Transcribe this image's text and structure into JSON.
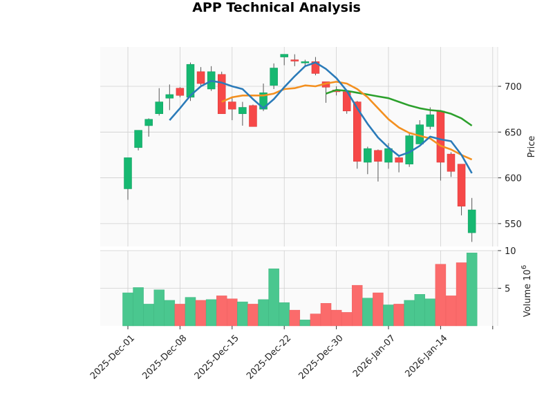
{
  "chart_data": {
    "type": "candlestick",
    "title": "APP Technical Analysis",
    "price_axis": {
      "label": "Price",
      "ylim": [
        525,
        743
      ],
      "ticks": [
        550,
        600,
        650,
        700
      ]
    },
    "volume_axis": {
      "label": "Volume",
      "multiplier_label": "10",
      "multiplier_exp": "6",
      "ylim": [
        0,
        10
      ],
      "ticks": [
        5,
        10
      ]
    },
    "x_ticks": [
      {
        "label": "2025-Dec-01",
        "index": 0
      },
      {
        "label": "2025-Dec-08",
        "index": 5
      },
      {
        "label": "2025-Dec-15",
        "index": 10
      },
      {
        "label": "2025-Dec-22",
        "index": 15
      },
      {
        "label": "2025-Dec-30",
        "index": 20
      },
      {
        "label": "2026-Jan-07",
        "index": 25
      },
      {
        "label": "2026-Jan-14",
        "index": 30
      }
    ],
    "candles": [
      {
        "open": 588,
        "high": 622,
        "low": 576,
        "close": 622,
        "volume": 4.4
      },
      {
        "open": 633,
        "high": 652,
        "low": 630,
        "close": 652,
        "volume": 5.1
      },
      {
        "open": 657,
        "high": 665,
        "low": 645,
        "close": 664,
        "volume": 2.9
      },
      {
        "open": 670,
        "high": 698,
        "low": 668,
        "close": 683,
        "volume": 4.8
      },
      {
        "open": 687,
        "high": 702,
        "low": 674,
        "close": 691,
        "volume": 3.4
      },
      {
        "open": 698,
        "high": 699,
        "low": 688,
        "close": 690,
        "volume": 2.9
      },
      {
        "open": 688,
        "high": 726,
        "low": 684,
        "close": 724,
        "volume": 3.8
      },
      {
        "open": 716,
        "high": 721,
        "low": 700,
        "close": 703,
        "volume": 3.4
      },
      {
        "open": 697,
        "high": 722,
        "low": 695,
        "close": 716,
        "volume": 3.5
      },
      {
        "open": 713,
        "high": 716,
        "low": 670,
        "close": 670,
        "volume": 4.0
      },
      {
        "open": 683,
        "high": 689,
        "low": 663,
        "close": 675,
        "volume": 3.6
      },
      {
        "open": 670,
        "high": 683,
        "low": 657,
        "close": 677,
        "volume": 3.2
      },
      {
        "open": 679,
        "high": 680,
        "low": 656,
        "close": 656,
        "volume": 2.9
      },
      {
        "open": 675,
        "high": 703,
        "low": 673,
        "close": 693,
        "volume": 3.5
      },
      {
        "open": 701,
        "high": 725,
        "low": 697,
        "close": 720,
        "volume": 7.6
      },
      {
        "open": 732,
        "high": 735,
        "low": 723,
        "close": 735,
        "volume": 3.1
      },
      {
        "open": 729,
        "high": 735,
        "low": 722,
        "close": 728,
        "volume": 2.1
      },
      {
        "open": 727,
        "high": 729,
        "low": 722,
        "close": 727,
        "volume": 0.8
      },
      {
        "open": 727,
        "high": 732,
        "low": 712,
        "close": 714,
        "volume": 1.6
      },
      {
        "open": 705,
        "high": 703,
        "low": 682,
        "close": 699,
        "volume": 3.0
      },
      {
        "open": 696,
        "high": 700,
        "low": 690,
        "close": 694,
        "volume": 2.1
      },
      {
        "open": 694,
        "high": 696,
        "low": 670,
        "close": 673,
        "volume": 1.8
      },
      {
        "open": 683,
        "high": 684,
        "low": 610,
        "close": 618,
        "volume": 5.4
      },
      {
        "open": 617,
        "high": 634,
        "low": 604,
        "close": 632,
        "volume": 3.7
      },
      {
        "open": 630,
        "high": 631,
        "low": 596,
        "close": 618,
        "volume": 4.4
      },
      {
        "open": 617,
        "high": 638,
        "low": 610,
        "close": 632,
        "volume": 2.8
      },
      {
        "open": 622,
        "high": 624,
        "low": 606,
        "close": 617,
        "volume": 2.9
      },
      {
        "open": 615,
        "high": 649,
        "low": 612,
        "close": 646,
        "volume": 3.4
      },
      {
        "open": 637,
        "high": 663,
        "low": 637,
        "close": 658,
        "volume": 4.2
      },
      {
        "open": 656,
        "high": 677,
        "low": 653,
        "close": 669,
        "volume": 3.6
      },
      {
        "open": 673,
        "high": 674,
        "low": 597,
        "close": 617,
        "volume": 8.2
      },
      {
        "open": 626,
        "high": 628,
        "low": 601,
        "close": 607,
        "volume": 4.0
      },
      {
        "open": 615,
        "high": 614,
        "low": 559,
        "close": 569,
        "volume": 8.4
      },
      {
        "open": 540,
        "high": 578,
        "low": 530,
        "close": 565,
        "volume": 9.7
      }
    ],
    "ma_short": [
      null,
      null,
      null,
      null,
      663,
      676,
      690,
      700,
      706,
      704,
      700,
      697,
      686,
      676,
      686,
      699,
      711,
      722,
      726,
      719,
      709,
      695,
      676,
      659,
      644,
      633,
      624,
      628,
      635,
      645,
      642,
      640,
      625,
      605
    ],
    "ma_mid": [
      null,
      null,
      null,
      null,
      null,
      null,
      null,
      null,
      null,
      683,
      688,
      690,
      690,
      690,
      692,
      697,
      698,
      701,
      700,
      703,
      705,
      703,
      697,
      688,
      676,
      664,
      655,
      649,
      646,
      643,
      635,
      631,
      625,
      620
    ],
    "ma_long": [
      null,
      null,
      null,
      null,
      null,
      null,
      null,
      null,
      null,
      null,
      null,
      null,
      null,
      null,
      null,
      null,
      null,
      null,
      null,
      692,
      696,
      695,
      693,
      691,
      689,
      687,
      683,
      679,
      676,
      674,
      673,
      670,
      665,
      657
    ]
  },
  "colors": {
    "up": "#16b871",
    "down": "#f64848",
    "up_volume": "#4ac78f",
    "down_volume": "#fb6b6b",
    "ma_short": "#2b7bb9",
    "ma_mid": "#f39020",
    "ma_long": "#2ca02c",
    "panel_bg": "#fafafa",
    "grid": "#cfcfcf"
  }
}
